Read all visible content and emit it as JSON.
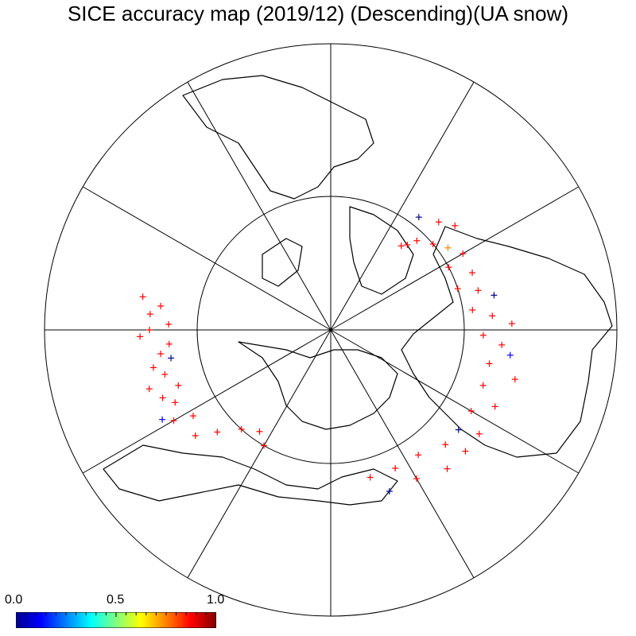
{
  "title": "SICE accuracy map (2019/12) (Descending)(UA snow)",
  "colors": {
    "background": "#ffffff",
    "lines": "#000000",
    "coastline": "#000000",
    "colorbar_stops": [
      "#00008f",
      "#0000ff",
      "#0080ff",
      "#00ffff",
      "#80ff80",
      "#ffff00",
      "#ff8000",
      "#ff0000",
      "#800000"
    ]
  },
  "map": {
    "projection": "north-polar-stereographic",
    "meridian_count": 12,
    "latitude_circle_count": 1,
    "marker": "plus",
    "points": [
      {
        "lon": 40,
        "lat": 67,
        "v": 0.95
      },
      {
        "lon": 42,
        "lat": 66,
        "v": 0.9
      },
      {
        "lon": 44,
        "lat": 64,
        "v": 0.95
      },
      {
        "lon": 50,
        "lat": 62,
        "v": 0.95
      },
      {
        "lon": 55,
        "lat": 60,
        "v": 0.85
      },
      {
        "lon": 60,
        "lat": 58,
        "v": 0.95
      },
      {
        "lon": 38,
        "lat": 60,
        "v": 0.1
      },
      {
        "lon": 45,
        "lat": 58,
        "v": 0.95
      },
      {
        "lon": 50,
        "lat": 56,
        "v": 0.95
      },
      {
        "lon": 62,
        "lat": 62,
        "v": 0.95
      },
      {
        "lon": 68,
        "lat": 58,
        "v": 0.9
      },
      {
        "lon": 72,
        "lat": 62,
        "v": 0.95
      },
      {
        "lon": 75,
        "lat": 58,
        "v": 0.95
      },
      {
        "lon": 78,
        "lat": 55,
        "v": 0.1
      },
      {
        "lon": 82,
        "lat": 60,
        "v": 0.95
      },
      {
        "lon": 85,
        "lat": 56,
        "v": 0.95
      },
      {
        "lon": 88,
        "lat": 52,
        "v": 0.95
      },
      {
        "lon": 92,
        "lat": 58,
        "v": 0.95
      },
      {
        "lon": 95,
        "lat": 54,
        "v": 0.95
      },
      {
        "lon": 98,
        "lat": 52,
        "v": 0.2
      },
      {
        "lon": 102,
        "lat": 56,
        "v": 0.95
      },
      {
        "lon": 105,
        "lat": 50,
        "v": 0.95
      },
      {
        "lon": 110,
        "lat": 56,
        "v": 0.95
      },
      {
        "lon": 115,
        "lat": 52,
        "v": 0.95
      },
      {
        "lon": 120,
        "lat": 56,
        "v": 0.95
      },
      {
        "lon": 125,
        "lat": 52,
        "v": 0.95
      },
      {
        "lon": 128,
        "lat": 56,
        "v": 0.1
      },
      {
        "lon": 132,
        "lat": 52,
        "v": 0.95
      },
      {
        "lon": 135,
        "lat": 56,
        "v": 0.95
      },
      {
        "lon": 140,
        "lat": 52,
        "v": 0.95
      },
      {
        "lon": 145,
        "lat": 58,
        "v": 0.95
      },
      {
        "lon": 150,
        "lat": 54,
        "v": 0.95
      },
      {
        "lon": 155,
        "lat": 58,
        "v": 0.95
      },
      {
        "lon": 160,
        "lat": 54,
        "v": 0.1
      },
      {
        "lon": 165,
        "lat": 58,
        "v": 0.95
      },
      {
        "lon": -95,
        "lat": 56,
        "v": 0.95
      },
      {
        "lon": -98,
        "lat": 54,
        "v": 0.95
      },
      {
        "lon": -100,
        "lat": 56,
        "v": 0.1
      },
      {
        "lon": -102,
        "lat": 52,
        "v": 0.95
      },
      {
        "lon": -105,
        "lat": 54,
        "v": 0.95
      },
      {
        "lon": -108,
        "lat": 50,
        "v": 0.95
      },
      {
        "lon": -110,
        "lat": 56,
        "v": 0.95
      },
      {
        "lon": -112,
        "lat": 52,
        "v": 0.95
      },
      {
        "lon": -115,
        "lat": 54,
        "v": 0.95
      },
      {
        "lon": -118,
        "lat": 50,
        "v": 0.2
      },
      {
        "lon": -120,
        "lat": 52,
        "v": 0.95
      },
      {
        "lon": -122,
        "lat": 56,
        "v": 0.95
      },
      {
        "lon": -90,
        "lat": 52,
        "v": 0.95
      },
      {
        "lon": -92,
        "lat": 50,
        "v": 0.95
      },
      {
        "lon": -88,
        "lat": 56,
        "v": 0.95
      },
      {
        "lon": -85,
        "lat": 52,
        "v": 0.95
      },
      {
        "lon": -82,
        "lat": 54,
        "v": 0.95
      },
      {
        "lon": -80,
        "lat": 50,
        "v": 0.95
      },
      {
        "lon": -128,
        "lat": 54,
        "v": 0.95
      },
      {
        "lon": -132,
        "lat": 58,
        "v": 0.95
      },
      {
        "lon": -138,
        "lat": 62,
        "v": 0.95
      },
      {
        "lon": -145,
        "lat": 64,
        "v": 0.95
      },
      {
        "lon": -150,
        "lat": 62,
        "v": 0.95
      }
    ]
  },
  "colorbar": {
    "min_label": "0.0",
    "mid_label": "0.5",
    "max_label": "1.0",
    "min": 0.0,
    "max": 1.0
  }
}
